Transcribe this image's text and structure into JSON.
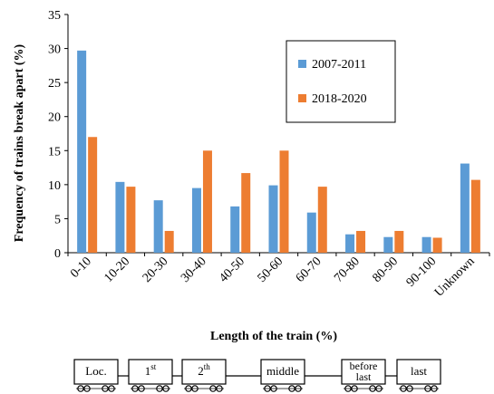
{
  "chart_data": {
    "type": "bar",
    "title": "",
    "xlabel": "Length of the train (%)",
    "ylabel": "Frequency of trains break apart (%)",
    "ylim": [
      0,
      35
    ],
    "yticks": [
      0,
      5,
      10,
      15,
      20,
      25,
      30,
      35
    ],
    "grid": false,
    "legend_position": "top-right",
    "categories": [
      "0-10",
      "10-20",
      "20-30",
      "30-40",
      "40-50",
      "50-60",
      "60-70",
      "70-80",
      "80-90",
      "90-100",
      "Unknown"
    ],
    "series": [
      {
        "name": "2007-2011",
        "color": "#5B9BD5",
        "values": [
          29.7,
          10.4,
          7.7,
          9.5,
          6.8,
          9.9,
          5.9,
          2.7,
          2.3,
          2.3,
          13.1
        ]
      },
      {
        "name": "2018-2020",
        "color": "#ED7D31",
        "values": [
          17.0,
          9.7,
          3.2,
          15.0,
          11.7,
          15.0,
          9.7,
          3.2,
          3.2,
          2.2,
          10.7
        ]
      }
    ]
  },
  "train_diagram": {
    "cars": [
      {
        "label": "Loc.",
        "sup": ""
      },
      {
        "label": "1",
        "sup": "st"
      },
      {
        "label": "2",
        "sup": "th"
      },
      {
        "label": "middle",
        "sup": ""
      },
      {
        "label": "before last",
        "sup": ""
      },
      {
        "label": "last",
        "sup": ""
      }
    ]
  }
}
